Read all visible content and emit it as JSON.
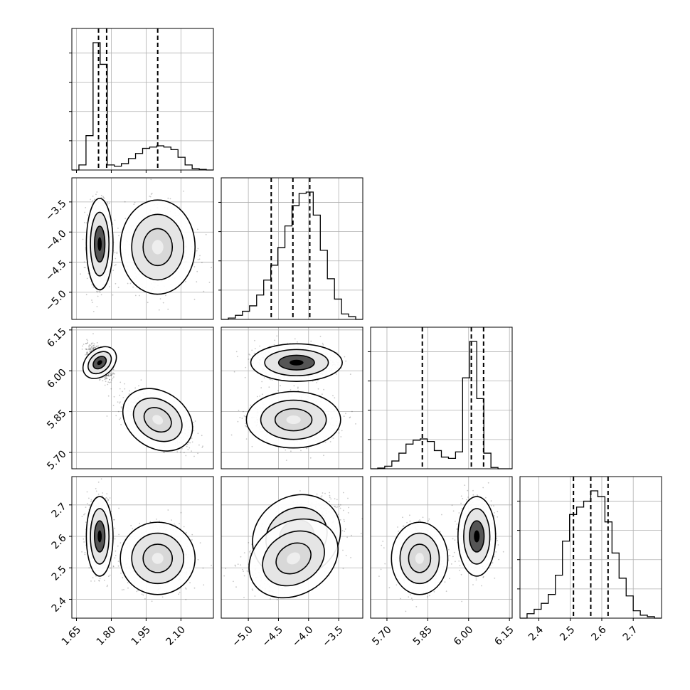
{
  "chart_data": {
    "type": "corner",
    "parameters": [
      {
        "range": [
          1.63,
          2.24
        ],
        "ticks": [
          1.65,
          1.8,
          1.95,
          2.1
        ],
        "tick_labels": [
          "1.65",
          "1.80",
          "1.95",
          "2.10"
        ],
        "quantiles": [
          1.745,
          1.78,
          2.0
        ],
        "hist_edges": [
          1.63,
          2.24
        ],
        "hist": [
          0,
          0.04,
          0.27,
          1.0,
          0.83,
          0.04,
          0.03,
          0.05,
          0.09,
          0.13,
          0.17,
          0.18,
          0.19,
          0.18,
          0.16,
          0.1,
          0.04,
          0.01,
          0.005,
          0
        ]
      },
      {
        "range": [
          -5.45,
          -3.1
        ],
        "ticks": [
          -5.0,
          -4.5,
          -4.0,
          -3.5
        ],
        "tick_labels": [
          "−5.0",
          "−4.5",
          "−4.0",
          "−3.5"
        ],
        "quantiles": [
          -4.62,
          -4.26,
          -3.98
        ],
        "hist_edges": [
          -5.45,
          -3.1
        ],
        "hist": [
          0,
          0.01,
          0.03,
          0.06,
          0.1,
          0.18,
          0.29,
          0.4,
          0.53,
          0.69,
          0.84,
          0.93,
          0.94,
          0.77,
          0.51,
          0.3,
          0.15,
          0.04,
          0.02,
          0
        ]
      },
      {
        "range": [
          5.64,
          6.16
        ],
        "ticks": [
          5.7,
          5.85,
          6.0,
          6.15
        ],
        "tick_labels": [
          "5.70",
          "5.85",
          "6.00",
          "6.15"
        ],
        "quantiles": [
          5.83,
          6.01,
          6.055
        ],
        "hist_edges": [
          5.64,
          6.16
        ],
        "hist": [
          0,
          0.005,
          0.02,
          0.06,
          0.12,
          0.19,
          0.22,
          0.23,
          0.21,
          0.14,
          0.09,
          0.08,
          0.13,
          0.7,
          0.98,
          0.54,
          0.12,
          0.01,
          0,
          0
        ]
      },
      {
        "range": [
          2.34,
          2.79
        ],
        "ticks": [
          2.4,
          2.5,
          2.6,
          2.7
        ],
        "tick_labels": [
          "2.4",
          "2.5",
          "2.6",
          "2.7"
        ],
        "quantiles": [
          2.51,
          2.565,
          2.62
        ],
        "hist_edges": [
          2.34,
          2.79
        ],
        "hist": [
          0,
          0.03,
          0.06,
          0.1,
          0.16,
          0.29,
          0.52,
          0.7,
          0.75,
          0.79,
          0.86,
          0.82,
          0.65,
          0.44,
          0.27,
          0.15,
          0.05,
          0.02,
          0.01,
          0
        ]
      }
    ],
    "clusters": [
      {
        "mean": [
          1.75,
          -4.2,
          6.03,
          2.6
        ],
        "sd": [
          0.025,
          0.33,
          0.03,
          0.055
        ],
        "weight": 0.55
      },
      {
        "mean": [
          2.0,
          -4.25,
          5.82,
          2.53
        ],
        "sd": [
          0.07,
          0.34,
          0.045,
          0.05
        ],
        "weight": 0.45
      }
    ],
    "axis_title_labels": [],
    "grid": true
  }
}
